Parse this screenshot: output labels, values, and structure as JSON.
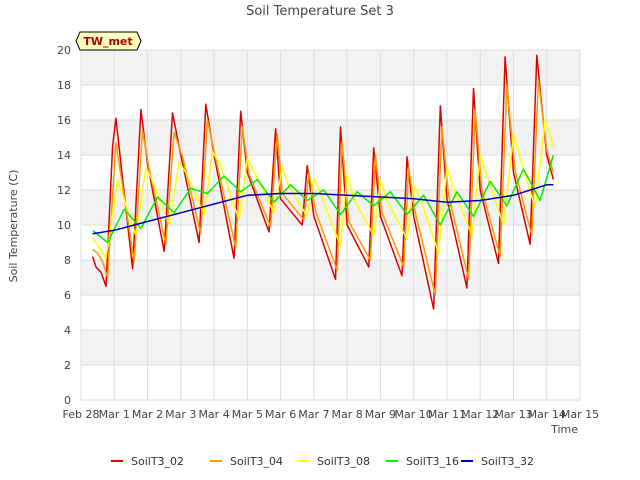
{
  "chart_data": {
    "type": "line",
    "title": "Soil Temperature Set 3",
    "xlabel": "Time",
    "ylabel": "Soil Temperature (C)",
    "station_badge": "TW_met",
    "ylim": [
      0,
      20
    ],
    "xlim": [
      0,
      15
    ],
    "y_ticks": [
      0,
      2,
      4,
      6,
      8,
      10,
      12,
      14,
      16,
      18,
      20
    ],
    "x_ticks": [
      {
        "pos": 0,
        "label": "Feb 28"
      },
      {
        "pos": 1,
        "label": "Mar 1"
      },
      {
        "pos": 2,
        "label": "Mar 2"
      },
      {
        "pos": 3,
        "label": "Mar 3"
      },
      {
        "pos": 4,
        "label": "Mar 4"
      },
      {
        "pos": 5,
        "label": "Mar 5"
      },
      {
        "pos": 6,
        "label": "Mar 6"
      },
      {
        "pos": 7,
        "label": "Mar 7"
      },
      {
        "pos": 8,
        "label": "Mar 8"
      },
      {
        "pos": 9,
        "label": "Mar 9"
      },
      {
        "pos": 10,
        "label": "Mar 10"
      },
      {
        "pos": 11,
        "label": "Mar 11"
      },
      {
        "pos": 12,
        "label": "Mar 12"
      },
      {
        "pos": 13,
        "label": "Mar 13"
      },
      {
        "pos": 14,
        "label": "Mar 14"
      },
      {
        "pos": 15,
        "label": "Mar 15"
      }
    ],
    "grid": true,
    "legend_position": "bottom",
    "series": [
      {
        "name": "SoilT3_02",
        "color": "#dd0000",
        "x": [
          0.35,
          0.45,
          0.6,
          0.75,
          0.95,
          1.05,
          1.55,
          1.8,
          2.0,
          2.5,
          2.75,
          3.0,
          3.55,
          3.75,
          4.0,
          4.6,
          4.8,
          5.0,
          5.65,
          5.85,
          6.0,
          6.65,
          6.8,
          7.0,
          7.65,
          7.8,
          8.0,
          8.65,
          8.8,
          9.0,
          9.65,
          9.8,
          10.0,
          10.6,
          10.8,
          11.0,
          11.6,
          11.8,
          12.0,
          12.55,
          12.75,
          13.0,
          13.5,
          13.7,
          14.0,
          14.2
        ],
        "y": [
          8.2,
          7.6,
          7.3,
          6.5,
          14.5,
          16.1,
          7.5,
          16.6,
          13.5,
          8.5,
          16.4,
          14.0,
          9.0,
          16.9,
          14.0,
          8.1,
          16.5,
          13.0,
          9.6,
          15.5,
          11.5,
          10.0,
          13.4,
          10.5,
          6.9,
          15.6,
          10.0,
          7.6,
          14.4,
          10.5,
          7.1,
          13.9,
          10.5,
          5.2,
          16.8,
          11.5,
          6.4,
          17.8,
          12.0,
          7.8,
          19.6,
          13.0,
          8.9,
          19.7,
          14.0,
          12.6
        ]
      },
      {
        "name": "SoilT3_04",
        "color": "#ff9900",
        "x": [
          0.35,
          0.5,
          0.65,
          0.8,
          1.05,
          1.6,
          1.85,
          2.05,
          2.55,
          2.8,
          3.05,
          3.6,
          3.8,
          4.05,
          4.65,
          4.85,
          5.05,
          5.7,
          5.9,
          6.05,
          6.7,
          6.85,
          7.05,
          7.7,
          7.85,
          8.05,
          8.7,
          8.85,
          9.05,
          9.7,
          9.85,
          10.05,
          10.65,
          10.85,
          11.05,
          11.65,
          11.85,
          12.05,
          12.6,
          12.8,
          13.05,
          13.55,
          13.75,
          14.0,
          14.2
        ],
        "y": [
          8.6,
          8.4,
          7.9,
          7.0,
          14.7,
          7.9,
          15.4,
          13.2,
          8.9,
          15.3,
          13.9,
          9.5,
          16.0,
          13.8,
          8.7,
          15.6,
          12.9,
          9.9,
          15.2,
          11.8,
          10.3,
          13.0,
          10.8,
          7.4,
          14.8,
          10.2,
          8.0,
          14.0,
          10.7,
          7.6,
          13.3,
          10.7,
          6.0,
          15.6,
          11.7,
          6.9,
          16.6,
          12.0,
          8.2,
          18.0,
          13.1,
          9.4,
          18.3,
          14.3,
          13.0
        ]
      },
      {
        "name": "SoilT3_08",
        "color": "#ffff00",
        "x": [
          0.35,
          0.55,
          0.75,
          1.1,
          1.65,
          1.95,
          2.15,
          2.65,
          2.95,
          3.15,
          3.7,
          3.95,
          4.2,
          4.75,
          5.0,
          5.25,
          5.8,
          6.05,
          6.25,
          6.8,
          7.0,
          7.2,
          7.8,
          8.0,
          8.2,
          8.8,
          9.0,
          9.2,
          9.8,
          10.0,
          10.2,
          10.75,
          11.0,
          11.2,
          11.75,
          12.0,
          12.2,
          12.7,
          13.0,
          13.2,
          13.65,
          13.95,
          14.2
        ],
        "y": [
          9.3,
          8.7,
          8.1,
          12.6,
          9.4,
          13.3,
          12.5,
          10.0,
          13.6,
          13.0,
          10.6,
          14.2,
          13.4,
          10.3,
          13.8,
          12.9,
          10.7,
          13.3,
          12.2,
          10.5,
          12.7,
          11.8,
          8.8,
          12.9,
          11.5,
          9.4,
          12.5,
          11.4,
          9.2,
          12.3,
          11.5,
          8.4,
          13.3,
          12.1,
          9.4,
          14.0,
          12.8,
          10.0,
          15.2,
          13.8,
          11.0,
          16.0,
          14.5
        ]
      },
      {
        "name": "SoilT3_16",
        "color": "#00ee00",
        "x": [
          0.35,
          0.8,
          1.3,
          1.8,
          2.3,
          2.8,
          3.3,
          3.8,
          4.3,
          4.8,
          5.3,
          5.8,
          6.3,
          6.8,
          7.3,
          7.8,
          8.3,
          8.8,
          9.3,
          9.8,
          10.3,
          10.8,
          11.3,
          11.8,
          12.3,
          12.8,
          13.3,
          13.8,
          14.2
        ],
        "y": [
          9.7,
          9.0,
          10.9,
          9.8,
          11.6,
          10.7,
          12.1,
          11.8,
          12.8,
          11.9,
          12.6,
          11.3,
          12.3,
          11.4,
          12.0,
          10.6,
          11.9,
          11.1,
          11.9,
          10.6,
          11.7,
          10.0,
          11.9,
          10.5,
          12.5,
          11.1,
          13.2,
          11.4,
          14.0
        ]
      },
      {
        "name": "SoilT3_32",
        "color": "#0000bb",
        "x": [
          0.35,
          1.0,
          2.0,
          3.0,
          4.0,
          5.0,
          6.0,
          7.0,
          8.0,
          9.0,
          10.0,
          11.0,
          12.0,
          13.0,
          14.0,
          14.2
        ],
        "y": [
          9.5,
          9.7,
          10.2,
          10.7,
          11.2,
          11.7,
          11.8,
          11.8,
          11.7,
          11.6,
          11.5,
          11.3,
          11.4,
          11.7,
          12.3,
          12.3
        ]
      }
    ]
  }
}
